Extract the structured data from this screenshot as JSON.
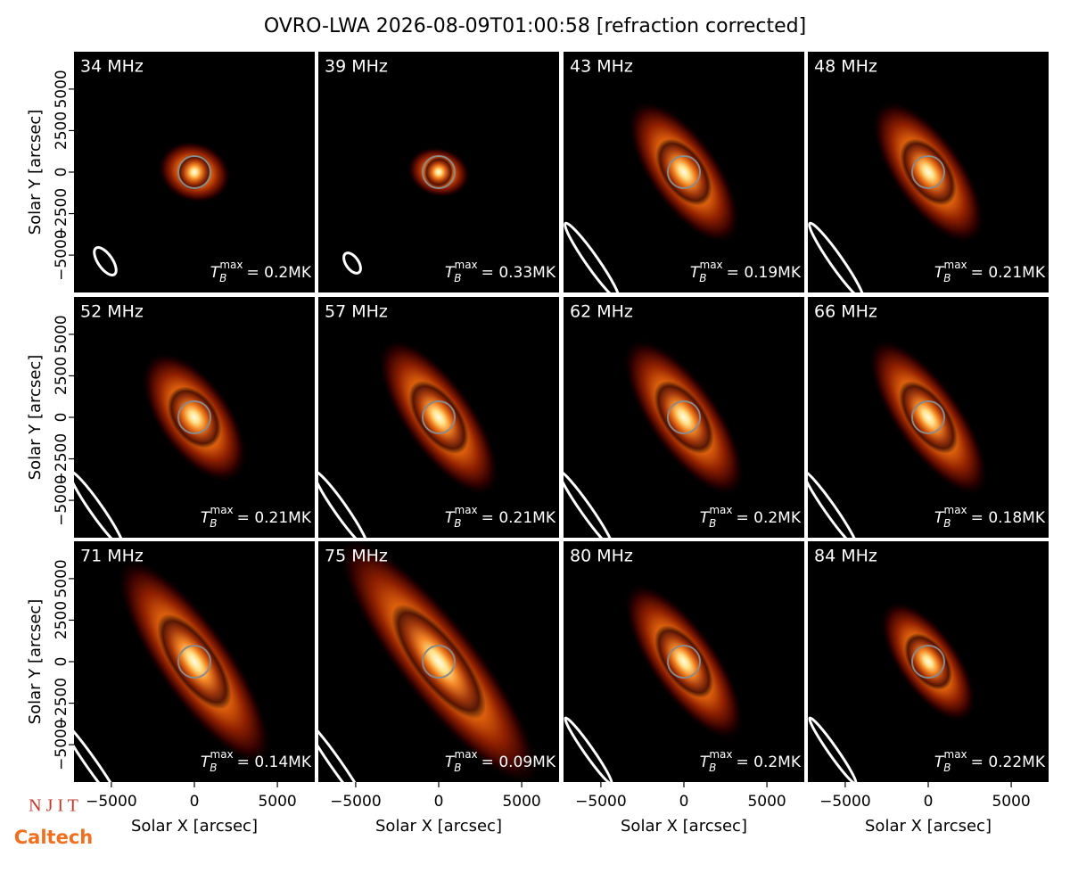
{
  "chart_data": {
    "type": "image_grid",
    "title": "OVRO-LWA 2026-08-09T01:00:58 [refraction corrected]",
    "xlabel": "Solar X [arcsec]",
    "ylabel": "Solar Y [arcsec]",
    "xlim": [
      -7250,
      7250
    ],
    "ylim": [
      -7250,
      7250
    ],
    "xticks": [
      {
        "value": -5000,
        "label": "−5000"
      },
      0,
      5000
    ],
    "yticks": [
      {
        "value": -5000,
        "label": "−5000"
      },
      {
        "value": -2500,
        "label": "−2500"
      },
      0,
      2500,
      5000
    ],
    "tb_symbol": {
      "base": "T",
      "sub": "B",
      "sup": "max"
    },
    "panels": [
      {
        "label": "34 MHz",
        "tb": "= 0.2MK"
      },
      {
        "label": "39 MHz",
        "tb": "= 0.33MK"
      },
      {
        "label": "43 MHz",
        "tb": "= 0.19MK"
      },
      {
        "label": "48 MHz",
        "tb": "= 0.21MK"
      },
      {
        "label": "52 MHz",
        "tb": "= 0.21MK"
      },
      {
        "label": "57 MHz",
        "tb": "= 0.21MK"
      },
      {
        "label": "62 MHz",
        "tb": "= 0.2MK"
      },
      {
        "label": "66 MHz",
        "tb": "= 0.18MK"
      },
      {
        "label": "71 MHz",
        "tb": "= 0.14MK"
      },
      {
        "label": "75 MHz",
        "tb": "= 0.09MK"
      },
      {
        "label": "80 MHz",
        "tb": "= 0.2MK"
      },
      {
        "label": "84 MHz",
        "tb": "= 0.22MK"
      }
    ]
  },
  "logos": {
    "njit": "N J I T",
    "caltech": "Caltech"
  }
}
